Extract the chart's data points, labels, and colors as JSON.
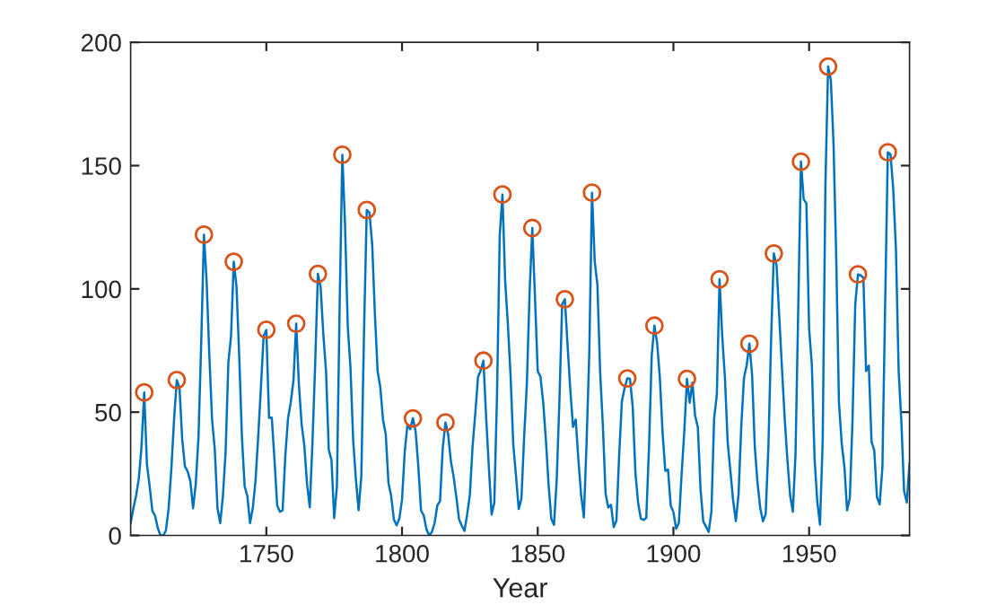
{
  "chart_data": {
    "type": "line",
    "xlabel": "Year",
    "xlim": [
      1700,
      1987
    ],
    "ylim": [
      0,
      200
    ],
    "xticks": [
      1750,
      1800,
      1850,
      1900,
      1950
    ],
    "yticks": [
      0,
      50,
      100,
      150,
      200
    ],
    "grid": false,
    "series": [
      {
        "color": "#0072bd",
        "marker": "none",
        "x": [
          1700,
          1701,
          1702,
          1703,
          1704,
          1705,
          1706,
          1707,
          1708,
          1709,
          1710,
          1711,
          1712,
          1713,
          1714,
          1715,
          1716,
          1717,
          1718,
          1719,
          1720,
          1721,
          1722,
          1723,
          1724,
          1725,
          1726,
          1727,
          1728,
          1729,
          1730,
          1731,
          1732,
          1733,
          1734,
          1735,
          1736,
          1737,
          1738,
          1739,
          1740,
          1741,
          1742,
          1743,
          1744,
          1745,
          1746,
          1747,
          1748,
          1749,
          1750,
          1751,
          1752,
          1753,
          1754,
          1755,
          1756,
          1757,
          1758,
          1759,
          1760,
          1761,
          1762,
          1763,
          1764,
          1765,
          1766,
          1767,
          1768,
          1769,
          1770,
          1771,
          1772,
          1773,
          1774,
          1775,
          1776,
          1777,
          1778,
          1779,
          1780,
          1781,
          1782,
          1783,
          1784,
          1785,
          1786,
          1787,
          1788,
          1789,
          1790,
          1791,
          1792,
          1793,
          1794,
          1795,
          1796,
          1797,
          1798,
          1799,
          1800,
          1801,
          1802,
          1803,
          1804,
          1805,
          1806,
          1807,
          1808,
          1809,
          1810,
          1811,
          1812,
          1813,
          1814,
          1815,
          1816,
          1817,
          1818,
          1819,
          1820,
          1821,
          1822,
          1823,
          1824,
          1825,
          1826,
          1827,
          1828,
          1829,
          1830,
          1831,
          1832,
          1833,
          1834,
          1835,
          1836,
          1837,
          1838,
          1839,
          1840,
          1841,
          1842,
          1843,
          1844,
          1845,
          1846,
          1847,
          1848,
          1849,
          1850,
          1851,
          1852,
          1853,
          1854,
          1855,
          1856,
          1857,
          1858,
          1859,
          1860,
          1861,
          1862,
          1863,
          1864,
          1865,
          1866,
          1867,
          1868,
          1869,
          1870,
          1871,
          1872,
          1873,
          1874,
          1875,
          1876,
          1877,
          1878,
          1879,
          1880,
          1881,
          1882,
          1883,
          1884,
          1885,
          1886,
          1887,
          1888,
          1889,
          1890,
          1891,
          1892,
          1893,
          1894,
          1895,
          1896,
          1897,
          1898,
          1899,
          1900,
          1901,
          1902,
          1903,
          1904,
          1905,
          1906,
          1907,
          1908,
          1909,
          1910,
          1911,
          1912,
          1913,
          1914,
          1915,
          1916,
          1917,
          1918,
          1919,
          1920,
          1921,
          1922,
          1923,
          1924,
          1925,
          1926,
          1927,
          1928,
          1929,
          1930,
          1931,
          1932,
          1933,
          1934,
          1935,
          1936,
          1937,
          1938,
          1939,
          1940,
          1941,
          1942,
          1943,
          1944,
          1945,
          1946,
          1947,
          1948,
          1949,
          1950,
          1951,
          1952,
          1953,
          1954,
          1955,
          1956,
          1957,
          1958,
          1959,
          1960,
          1961,
          1962,
          1963,
          1964,
          1965,
          1966,
          1967,
          1968,
          1969,
          1970,
          1971,
          1972,
          1973,
          1974,
          1975,
          1976,
          1977,
          1978,
          1979,
          1980,
          1981,
          1982,
          1983,
          1984,
          1985,
          1986,
          1987
        ],
        "values": [
          5,
          11,
          16,
          23,
          36,
          58,
          29,
          20,
          10,
          8,
          3,
          0,
          0,
          2,
          11,
          27,
          47,
          63,
          60,
          39,
          28,
          26,
          22,
          11,
          21,
          40,
          78,
          122,
          103,
          73,
          47,
          35,
          11,
          5,
          16,
          34,
          70,
          81,
          111,
          101,
          73,
          40,
          20,
          16,
          5,
          11,
          22,
          40,
          60,
          80.9,
          83.4,
          47.7,
          47.8,
          30.7,
          12.2,
          9.6,
          10.2,
          32.4,
          47.6,
          54,
          62.9,
          85.9,
          61.2,
          45.1,
          36.4,
          20.9,
          11.4,
          37.8,
          69.8,
          106.1,
          100.8,
          81.6,
          66.5,
          34.8,
          30.6,
          7,
          19.8,
          92.5,
          154.4,
          125.9,
          84.8,
          68.1,
          38.5,
          22.8,
          10.2,
          24.1,
          82.9,
          132,
          130.9,
          118.1,
          89.9,
          66.6,
          60,
          46.9,
          41,
          21.3,
          16,
          6.4,
          4.1,
          6.8,
          14.5,
          34,
          45,
          43.1,
          47.5,
          42.2,
          28.1,
          10.1,
          8.1,
          2.5,
          0,
          1.4,
          5,
          12.2,
          13.9,
          35.4,
          45.8,
          41,
          30.1,
          23.9,
          15.6,
          6.6,
          4,
          1.8,
          8.5,
          16.6,
          36.3,
          49.6,
          64.2,
          67,
          70.9,
          47.8,
          27.5,
          8.5,
          13.2,
          56.9,
          121.5,
          138.3,
          103.2,
          85.7,
          64.6,
          36.7,
          24.2,
          10.7,
          15,
          40.1,
          61.5,
          98.5,
          124.7,
          96.3,
          66.6,
          64.5,
          54.1,
          39,
          20.6,
          6.7,
          4.3,
          22.7,
          54.8,
          93.8,
          95.8,
          77.2,
          59.1,
          44,
          47,
          30.5,
          16.3,
          7.3,
          37.6,
          74,
          139,
          111.2,
          101.6,
          66.2,
          44.7,
          17,
          11.3,
          12.4,
          3.4,
          6,
          32.3,
          54.3,
          59.7,
          63.7,
          63.5,
          52.2,
          25.4,
          13.1,
          6.8,
          6.3,
          7.1,
          35.6,
          73,
          85.1,
          78,
          64,
          41.8,
          26.2,
          26.7,
          12.1,
          9.5,
          2.7,
          5,
          24.4,
          42,
          63.5,
          53.8,
          62,
          48.5,
          43.9,
          18.6,
          5.7,
          3.6,
          1.4,
          9.6,
          47.4,
          57.1,
          103.9,
          80.6,
          63.6,
          37.6,
          26.1,
          14.2,
          5.8,
          16.7,
          44.3,
          63.9,
          69,
          77.8,
          64.9,
          35.7,
          21.2,
          11.1,
          5.7,
          8.7,
          36.1,
          79.7,
          114.4,
          109.6,
          88.8,
          67.8,
          47.5,
          30.6,
          16.3,
          9.6,
          33.2,
          92.6,
          151.6,
          136.3,
          134.7,
          83.9,
          69.4,
          31.5,
          13.9,
          4.4,
          38,
          141.7,
          190.2,
          184.8,
          159,
          112.3,
          53.9,
          37.5,
          27.9,
          10.2,
          15.1,
          47,
          93.8,
          105.9,
          105.5,
          104.5,
          66.6,
          68.9,
          38,
          34.5,
          15.5,
          12.6,
          27.5,
          92.5,
          155.4,
          154.6,
          140.4,
          115.9,
          66.6,
          45.9,
          17.9,
          13.4,
          29.2
        ]
      },
      {
        "type": "scatter",
        "color": "#d95319",
        "marker": "circle",
        "x": [
          1705,
          1717,
          1727,
          1738,
          1750,
          1761,
          1769,
          1778,
          1787,
          1804,
          1816,
          1830,
          1837,
          1848,
          1860,
          1870,
          1883,
          1893,
          1905,
          1917,
          1928,
          1937,
          1947,
          1957,
          1968,
          1979
        ],
        "values": [
          58,
          63,
          122,
          111,
          83.4,
          85.9,
          106.1,
          154.4,
          132,
          47.5,
          45.8,
          70.9,
          138.3,
          124.7,
          95.8,
          139,
          63.7,
          85.1,
          63.5,
          103.9,
          77.8,
          114.4,
          151.6,
          190.2,
          105.9,
          155.4
        ]
      }
    ]
  }
}
